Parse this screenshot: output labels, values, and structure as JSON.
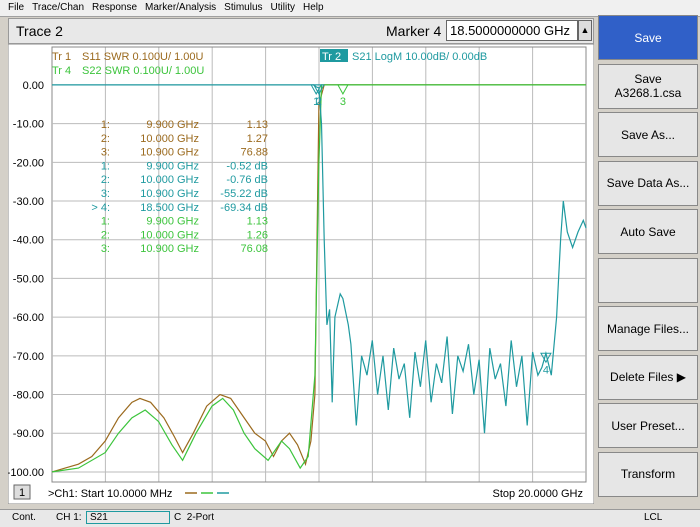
{
  "menu": [
    "File",
    "Trace/Chan",
    "Response",
    "Marker/Analysis",
    "Stimulus",
    "Utility",
    "Help"
  ],
  "header": {
    "trace": "Trace 2",
    "marker_label": "Marker 4",
    "marker_value": "18.5000000000 GHz"
  },
  "softkeys": [
    [
      "Save"
    ],
    [
      "Save",
      "A3268.1.csa"
    ],
    [
      "Save As..."
    ],
    [
      "Save Data As..."
    ],
    [
      "Auto Save"
    ],
    [],
    [
      "Manage Files..."
    ],
    [
      "Delete Files ▶"
    ],
    [
      "User Preset..."
    ],
    [
      "Transform"
    ]
  ],
  "chart_data": {
    "type": "line",
    "xlim": [
      0.01,
      20
    ],
    "ylim": [
      -102.6,
      9.8
    ],
    "yticks": [
      {
        "value": 0,
        "label": "0.00"
      },
      {
        "value": -10,
        "label": "-10.00"
      },
      {
        "value": -20,
        "label": "-20.00"
      },
      {
        "value": -30,
        "label": "-30.00"
      },
      {
        "value": -40,
        "label": "-40.00"
      },
      {
        "value": -50,
        "label": "-50.00"
      },
      {
        "value": -60,
        "label": "-60.00"
      },
      {
        "value": -70,
        "label": "-70.00"
      },
      {
        "value": -80,
        "label": "-80.00"
      },
      {
        "value": -90,
        "label": "-90.00"
      },
      {
        "value": -100,
        "label": "-100.00"
      }
    ],
    "grid": true,
    "trace_legend": [
      {
        "tr": "Tr  1",
        "text": "S11 SWR 0.100U/  1.00U",
        "color": "#9b6a1e",
        "active": false
      },
      {
        "tr": "Tr  4",
        "text": "S22 SWR 0.100U/  1.00U",
        "color": "#3cc43c",
        "active": false
      },
      {
        "tr": "Tr  2",
        "text": "S21 LogM 10.00dB/  0.00dB",
        "color": "#1f9aa0",
        "active": true
      }
    ],
    "marker_table": [
      {
        "label": "1:",
        "freq": "9.900 GHz",
        "value": "1.13",
        "color": "#9b6a1e"
      },
      {
        "label": "2:",
        "freq": "10.000 GHz",
        "value": "1.27",
        "color": "#9b6a1e"
      },
      {
        "label": "3:",
        "freq": "10.900 GHz",
        "value": "76.88",
        "color": "#9b6a1e"
      },
      {
        "label": "1:",
        "freq": "9.900 GHz",
        "value": "-0.52 dB",
        "color": "#1f9aa0"
      },
      {
        "label": "2:",
        "freq": "10.000 GHz",
        "value": "-0.76 dB",
        "color": "#1f9aa0"
      },
      {
        "label": "3:",
        "freq": "10.900 GHz",
        "value": "-55.22 dB",
        "color": "#1f9aa0"
      },
      {
        "label": "> 4:",
        "freq": "18.500 GHz",
        "value": "-69.34 dB",
        "color": "#1f9aa0"
      },
      {
        "label": "1:",
        "freq": "9.900 GHz",
        "value": "1.13",
        "color": "#3cc43c"
      },
      {
        "label": "2:",
        "freq": "10.000 GHz",
        "value": "1.26",
        "color": "#3cc43c"
      },
      {
        "label": "3:",
        "freq": "10.900 GHz",
        "value": "76.08",
        "color": "#3cc43c"
      }
    ],
    "series": [
      {
        "name": "S11",
        "color": "#9b6a1e",
        "x": [
          0.01,
          0.5,
          1,
          1.5,
          2,
          2.5,
          3,
          3.3,
          3.7,
          4.2,
          4.6,
          4.9,
          5.3,
          5.8,
          6.3,
          6.7,
          7.1,
          7.6,
          8,
          8.3,
          8.6,
          8.9,
          9.2,
          9.5,
          9.7,
          9.85,
          10,
          10.2,
          20
        ],
        "values": [
          -100,
          -99,
          -98,
          -96,
          -92,
          -86,
          -82,
          -81,
          -82,
          -86,
          -91,
          -95,
          -90,
          -83,
          -80,
          -81,
          -85,
          -90,
          -92,
          -96,
          -92,
          -90,
          -93,
          -98,
          -92,
          -80,
          -5,
          0,
          0
        ]
      },
      {
        "name": "S22",
        "color": "#3cc43c",
        "x": [
          0.01,
          1,
          2,
          2.5,
          3,
          3.5,
          4,
          4.5,
          4.9,
          5.4,
          6,
          6.4,
          6.8,
          7.2,
          7.6,
          8.1,
          8.6,
          8.9,
          9.3,
          9.6,
          9.85,
          10,
          10.1,
          20
        ],
        "values": [
          -100,
          -99,
          -95,
          -90,
          -86,
          -84,
          -87,
          -93,
          -97,
          -90,
          -83,
          -81,
          -84,
          -90,
          -94,
          -97,
          -92,
          -94,
          -99,
          -96,
          -75,
          -20,
          0,
          0
        ]
      },
      {
        "name": "S21",
        "color": "#1f9aa0",
        "x": [
          0.01,
          9.8,
          9.9,
          10,
          10.1,
          10.2,
          10.3,
          10.4,
          10.5,
          10.6,
          10.8,
          10.9,
          11.1,
          11.2,
          11.4,
          11.6,
          11.8,
          12,
          12.2,
          12.4,
          12.6,
          12.8,
          13,
          13.2,
          13.4,
          13.6,
          13.8,
          14,
          14.2,
          14.4,
          14.6,
          14.8,
          15,
          15.2,
          15.4,
          15.6,
          15.8,
          16,
          16.2,
          16.4,
          16.6,
          16.8,
          17,
          17.2,
          17.4,
          17.6,
          17.8,
          18,
          18.2,
          18.35,
          18.5,
          18.7,
          18.9,
          19.05,
          19.15,
          19.3,
          19.5,
          19.7,
          19.9,
          20
        ],
        "values": [
          0,
          0,
          -0.52,
          -0.76,
          -10,
          -40,
          -62,
          -58,
          -82,
          -60,
          -54,
          -55.22,
          -62,
          -67,
          -88,
          -70,
          -75,
          -66,
          -80,
          -70,
          -84,
          -68,
          -76,
          -72,
          -86,
          -69,
          -78,
          -66,
          -82,
          -72,
          -77,
          -65,
          -85,
          -70,
          -74,
          -67,
          -80,
          -71,
          -90,
          -68,
          -76,
          -72,
          -83,
          -66,
          -78,
          -70,
          -88,
          -69,
          -75,
          -73,
          -69.34,
          -75,
          -60,
          -40,
          -30,
          -38,
          -42,
          -38,
          -35,
          -37
        ]
      }
    ],
    "markers": [
      {
        "label": "1",
        "x": 9.9,
        "y": 0,
        "color": "#1f9aa0"
      },
      {
        "label": "2",
        "x": 10,
        "y": 0,
        "color": "#1f9aa0"
      },
      {
        "label": "3",
        "x": 10.9,
        "y": 0,
        "color": "#3cc43c"
      },
      {
        "label": "4",
        "x": 18.5,
        "y": -69.34,
        "color": "#1f9aa0"
      }
    ]
  },
  "footer": {
    "channel_box": "1",
    "start": ">Ch1: Start  10.0000 MHz",
    "stop": "Stop  20.0000 GHz"
  },
  "status": {
    "mode": "Cont.",
    "channel": "CH 1:",
    "param": "S21",
    "cal": "C  2-Port",
    "ref": "LCL"
  }
}
